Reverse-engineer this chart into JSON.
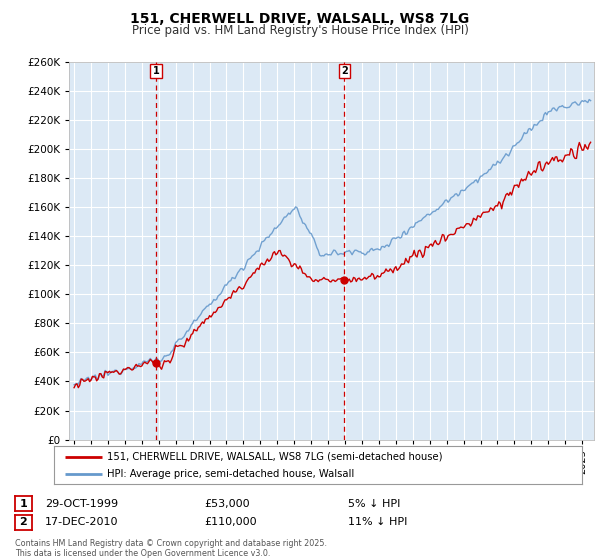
{
  "title_line1": "151, CHERWELL DRIVE, WALSALL, WS8 7LG",
  "title_line2": "Price paid vs. HM Land Registry's House Price Index (HPI)",
  "legend_property": "151, CHERWELL DRIVE, WALSALL, WS8 7LG (semi-detached house)",
  "legend_hpi": "HPI: Average price, semi-detached house, Walsall",
  "plot_bg_color": "#dce9f5",
  "grid_color": "#ffffff",
  "line_color_property": "#cc0000",
  "line_color_hpi": "#6699cc",
  "transaction1": {
    "label": "1",
    "date": "29-OCT-1999",
    "price": "£53,000",
    "note": "5% ↓ HPI",
    "year": 1999.83,
    "price_val": 53000
  },
  "transaction2": {
    "label": "2",
    "date": "17-DEC-2010",
    "price": "£110,000",
    "note": "11% ↓ HPI",
    "year": 2010.96,
    "price_val": 110000
  },
  "copyright": "Contains HM Land Registry data © Crown copyright and database right 2025.\nThis data is licensed under the Open Government Licence v3.0.",
  "ymin": 0,
  "ymax": 260000,
  "xmin": 1994.7,
  "xmax": 2025.7
}
